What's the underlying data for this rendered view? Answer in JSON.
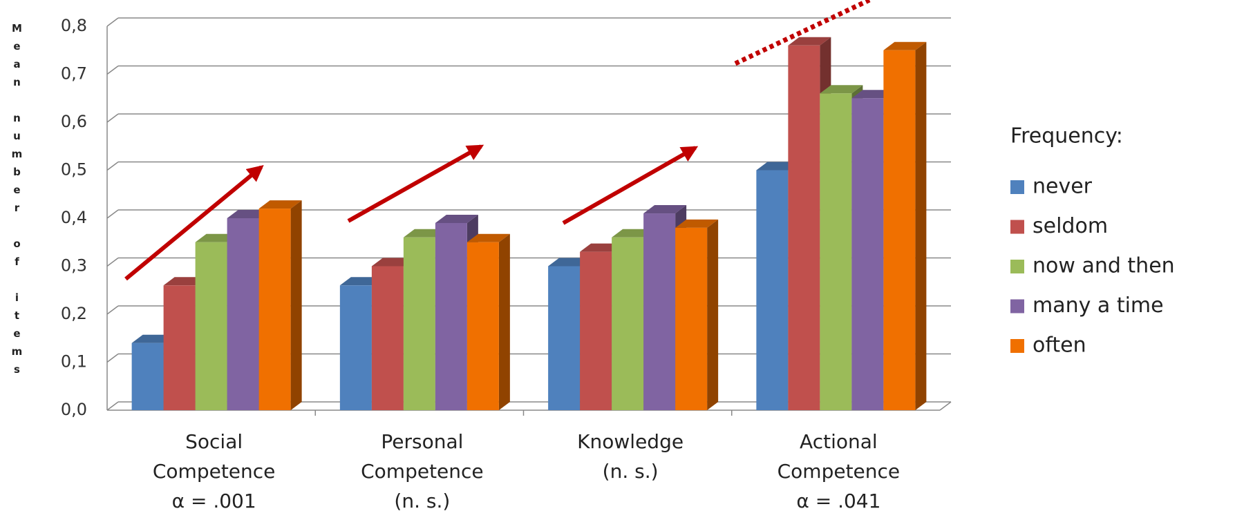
{
  "chart_data": {
    "type": "bar",
    "ylabel": "Mean number of items",
    "legend_title": "Frequency:",
    "categories": [
      [
        "Social",
        "Competence",
        "α = .001"
      ],
      [
        "Personal",
        "Competence",
        "(n. s.)"
      ],
      [
        "Knowledge",
        "(n. s.)"
      ],
      [
        "Actional",
        "Competence",
        "α = .041"
      ]
    ],
    "series": [
      {
        "name": "never",
        "color": "#4f81bd",
        "values": [
          0.14,
          0.26,
          0.3,
          0.5
        ]
      },
      {
        "name": "seldom",
        "color": "#c0504d",
        "values": [
          0.26,
          0.3,
          0.33,
          0.76
        ]
      },
      {
        "name": "now and then",
        "color": "#9bbb59",
        "values": [
          0.35,
          0.36,
          0.36,
          0.66
        ]
      },
      {
        "name": "many a time",
        "color": "#8064a2",
        "values": [
          0.4,
          0.39,
          0.41,
          0.65
        ]
      },
      {
        "name": "often",
        "color": "#f07000",
        "values": [
          0.42,
          0.35,
          0.38,
          0.75
        ]
      }
    ],
    "ylim": [
      0,
      0.8
    ],
    "yticks": [
      {
        "value": 0,
        "label": "0,0"
      },
      {
        "value": 0.1,
        "label": "0,1"
      },
      {
        "value": 0.2,
        "label": "0,2"
      },
      {
        "value": 0.3,
        "label": "0,3"
      },
      {
        "value": 0.4,
        "label": "0,4"
      },
      {
        "value": 0.5,
        "label": "0,5"
      },
      {
        "value": 0.6,
        "label": "0,6"
      },
      {
        "value": 0.7,
        "label": "0,7"
      },
      {
        "value": 0.8,
        "label": "0,8"
      }
    ],
    "grid": true
  }
}
